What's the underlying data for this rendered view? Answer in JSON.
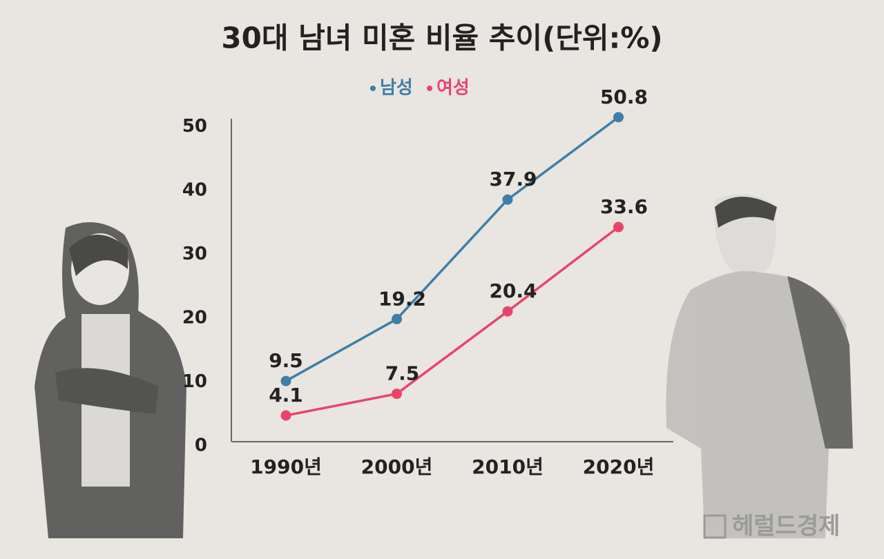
{
  "chart_data": {
    "type": "line",
    "title": "30대 남녀 미혼 비율 추이(단위:%)",
    "categories": [
      "1990년",
      "2000년",
      "2010년",
      "2020년"
    ],
    "series": [
      {
        "name": "남성",
        "color": "#3f7ea6",
        "values": [
          9.5,
          19.2,
          37.9,
          50.8
        ]
      },
      {
        "name": "여성",
        "color": "#e8446b",
        "values": [
          4.1,
          7.5,
          20.4,
          33.6
        ]
      }
    ],
    "ylim": [
      0,
      51
    ],
    "yticks": [
      0,
      10,
      20,
      30,
      40,
      50
    ],
    "grid": false,
    "legend": "top",
    "source": "헤럴드경제"
  }
}
